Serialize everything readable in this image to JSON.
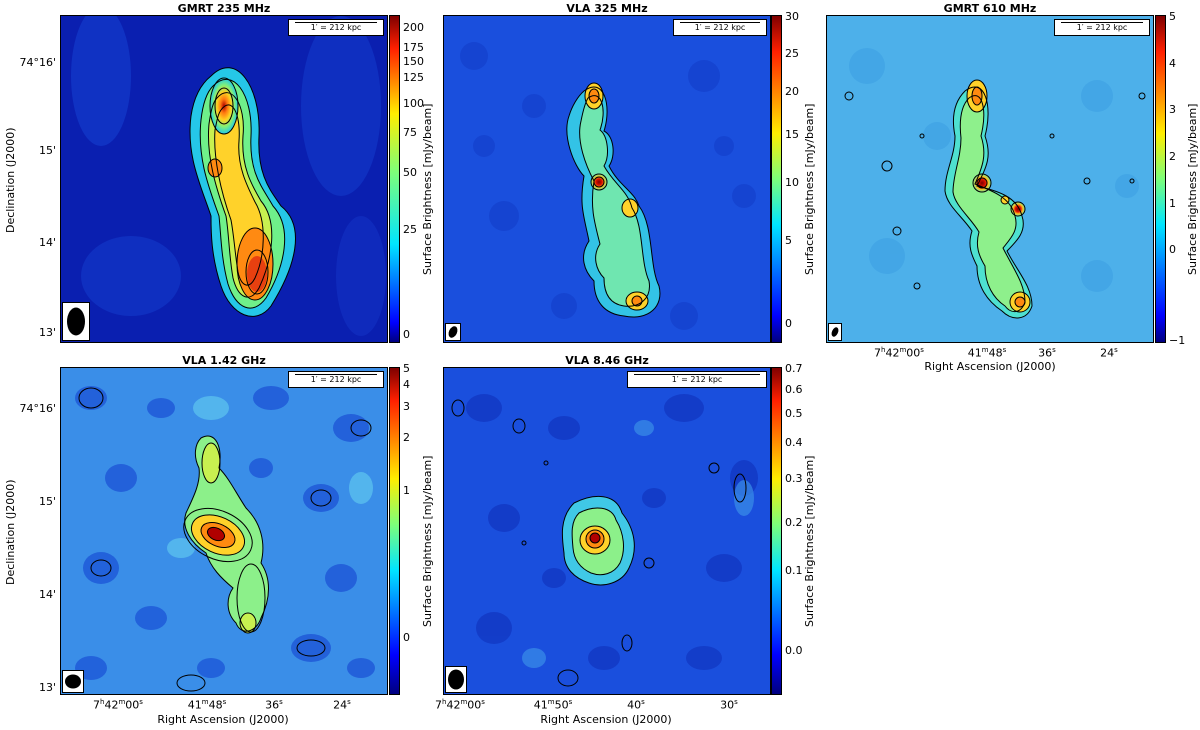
{
  "scale_label": "1′ = 212 kpc",
  "axis": {
    "ylabel": "Declination (J2000)",
    "xlabel": "Right Ascension (J2000)",
    "dec_ticks": [
      "74°16'",
      "15'",
      "14'",
      "13'"
    ],
    "cbar_label": "Surface Brightness [mJy/beam]"
  },
  "panels": [
    {
      "id": "gmrt235",
      "title": "GMRT 235 MHz",
      "cbar_ticks": [
        "200",
        "175",
        "150",
        "125",
        "100",
        "75",
        "50",
        "25",
        "0"
      ],
      "ra_ticks": []
    },
    {
      "id": "vla325",
      "title": "VLA 325 MHz",
      "cbar_ticks": [
        "30",
        "25",
        "20",
        "15",
        "10",
        "5",
        "0"
      ],
      "ra_ticks": []
    },
    {
      "id": "gmrt610",
      "title": "GMRT 610 MHz",
      "cbar_ticks": [
        "5",
        "4",
        "3",
        "2",
        "1",
        "0",
        "−1"
      ],
      "ra_ticks": [
        {
          "h": "7",
          "m": "42",
          "s": "00",
          "label": "7h42m00s"
        },
        {
          "m": "41",
          "s": "48",
          "label": "41m48s"
        },
        {
          "s": "36",
          "label": "36s"
        },
        {
          "s": "24",
          "label": "24s"
        }
      ]
    },
    {
      "id": "vla142",
      "title": "VLA 1.42 GHz",
      "cbar_ticks": [
        "5",
        "4",
        "3",
        "2",
        "1",
        "0"
      ],
      "ra_ticks": [
        {
          "h": "7",
          "m": "42",
          "s": "00",
          "label": "7h42m00s"
        },
        {
          "m": "41",
          "s": "48",
          "label": "41m48s"
        },
        {
          "s": "36",
          "label": "36s"
        },
        {
          "s": "24",
          "label": "24s"
        }
      ]
    },
    {
      "id": "vla846",
      "title": "VLA 8.46 GHz",
      "cbar_ticks": [
        "0.7",
        "0.6",
        "0.5",
        "0.4",
        "0.3",
        "0.2",
        "0.1",
        "0.0"
      ],
      "ra_ticks": [
        {
          "h": "7",
          "m": "42",
          "s": "00",
          "label": "7h42m00s"
        },
        {
          "m": "41",
          "s": "50",
          "label": "41m50s"
        },
        {
          "s": "40",
          "label": "40s"
        },
        {
          "s": "30",
          "label": "30s"
        }
      ]
    }
  ],
  "colors": {
    "background_deep": "#00109a",
    "background_mid": "#1d59e6",
    "background_light": "#3aa0ea",
    "emission_green": "#8cf26a",
    "emission_yellow": "#ffe12a",
    "emission_orange": "#ff7a10",
    "emission_red": "#b00000",
    "contour": "#000000"
  }
}
